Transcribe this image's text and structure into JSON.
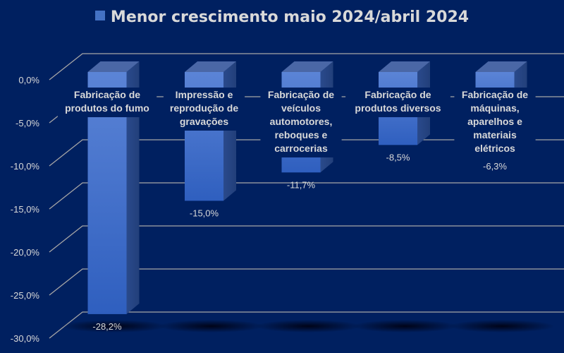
{
  "chart_data": {
    "type": "bar",
    "title": "Menor crescimento maio 2024/abril 2024",
    "legend": {
      "entries": [
        "Menor crescimento maio 2024/abril 2024"
      ],
      "placement": "top"
    },
    "categories": [
      "Fabricação de produtos do fumo",
      "Impressão e reprodução de gravações",
      "Fabricação de veículos automotores, reboques e carrocerias",
      "Fabricação de produtos diversos",
      "Fabricação de máquinas, aparelhos e materiais elétricos"
    ],
    "category_lines": [
      [
        "Fabricação de",
        "produtos do fumo"
      ],
      [
        "Impressão e",
        "reprodução de",
        "gravações"
      ],
      [
        "Fabricação de",
        "veículos",
        "automotores,",
        "reboques e",
        "carrocerias"
      ],
      [
        "Fabricação de",
        "produtos diversos"
      ],
      [
        "Fabricação de",
        "máquinas,",
        "aparelhos e",
        "materiais",
        "elétricos"
      ]
    ],
    "values": [
      -28.2,
      -15.0,
      -11.7,
      -8.5,
      -6.3
    ],
    "data_labels": [
      "-28,2%",
      "-15,0%",
      "-11,7%",
      "-8,5%",
      "-6,3%"
    ],
    "y_ticks": [
      0,
      -5,
      -10,
      -15,
      -20,
      -25,
      -30
    ],
    "y_tick_labels": [
      "0,0%",
      "-5,0%",
      "-10,0%",
      "-15,0%",
      "-20,0%",
      "-25,0%",
      "-30,0%"
    ],
    "ylim": [
      -30,
      0
    ],
    "grid": true,
    "xlabel": "",
    "ylabel": "",
    "colors": {
      "background": "#002060",
      "bar": "#4472c4",
      "text": "#d9d9d9",
      "grid": "#a6a6a6"
    }
  }
}
